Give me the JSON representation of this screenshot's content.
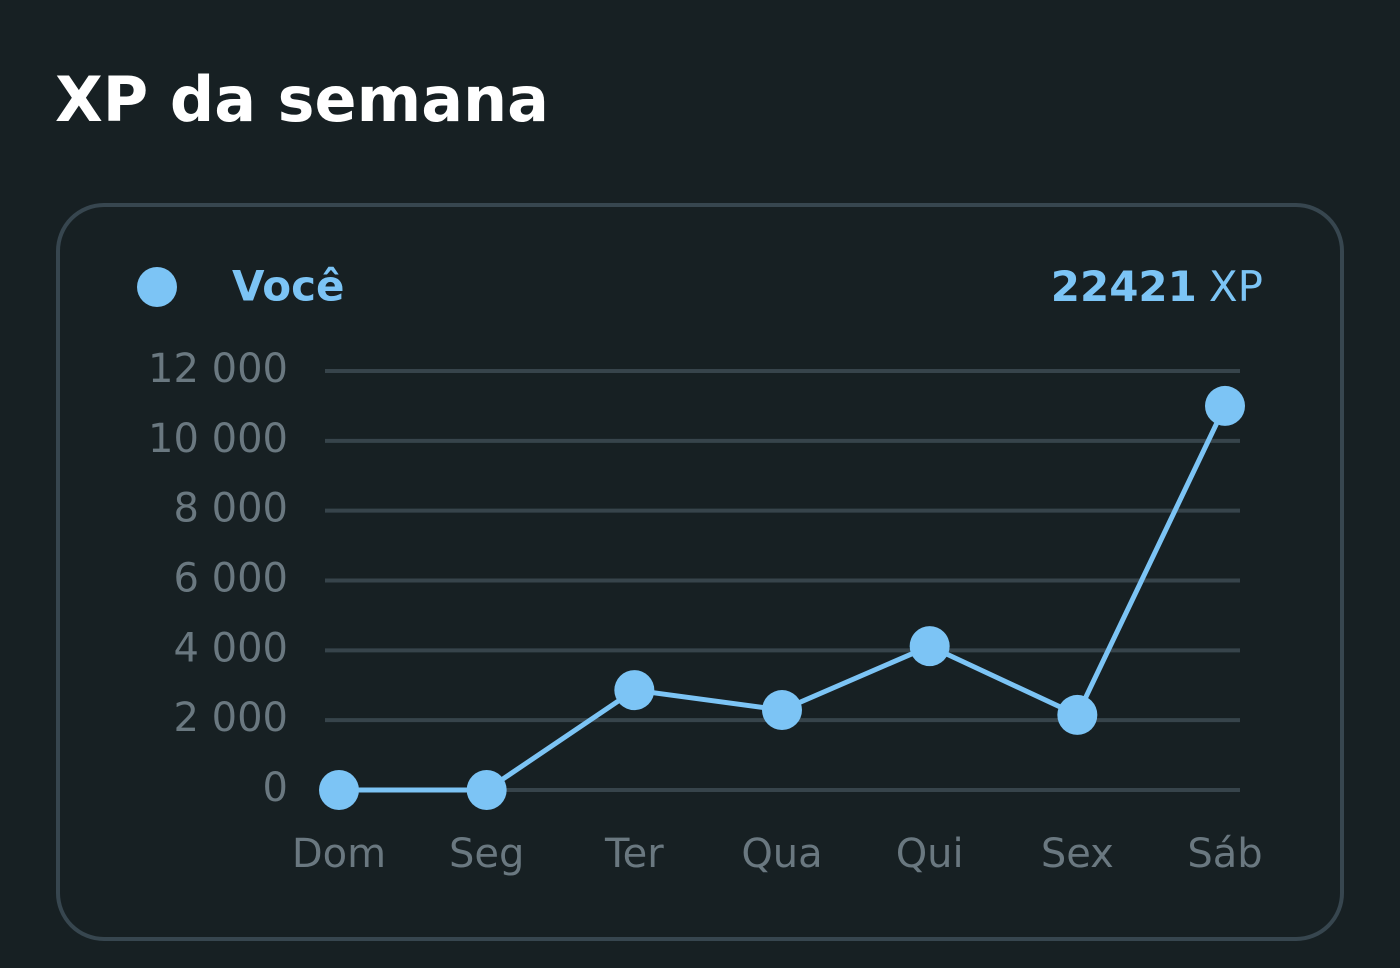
{
  "chart_data": {
    "type": "line",
    "title": "XP da semana",
    "categories": [
      "Dom",
      "Seg",
      "Ter",
      "Qua",
      "Qui",
      "Sex",
      "Sáb"
    ],
    "series": [
      {
        "name": "Você",
        "color": "#7cc4f5",
        "values": [
          0,
          0,
          2860,
          2290,
          4120,
          2150,
          11000
        ]
      }
    ],
    "total": 22421,
    "total_unit": "XP",
    "ylim": [
      0,
      12000
    ],
    "yticks": [
      0,
      {
        "value": 2000,
        "label": "2 000"
      },
      {
        "value": 4000,
        "label": "4 000"
      },
      {
        "value": 6000,
        "label": "6 000"
      },
      {
        "value": 8000,
        "label": "8 000"
      },
      {
        "value": 10000,
        "label": "10 000"
      },
      {
        "value": 12000,
        "label": "12 000"
      }
    ],
    "grid": true
  }
}
